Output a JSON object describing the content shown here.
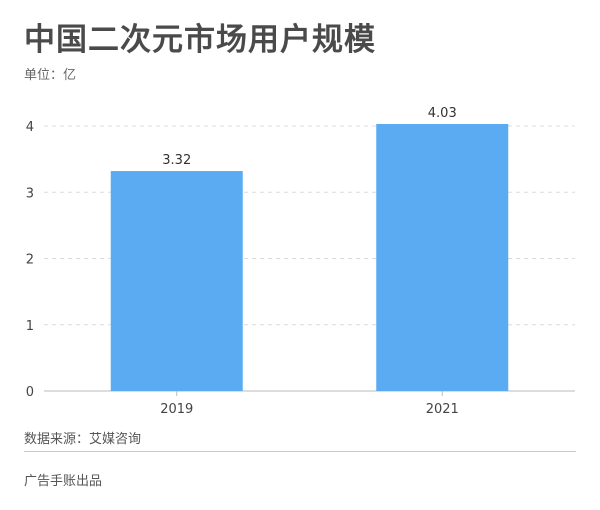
{
  "header": {
    "title": "中国二次元市场用户规模",
    "unit": "单位：亿"
  },
  "chart_data": {
    "type": "bar",
    "categories": [
      "2019",
      "2021"
    ],
    "values": [
      3.32,
      4.03
    ],
    "data_labels": [
      "3.32",
      "4.03"
    ],
    "ylim": [
      0,
      4
    ],
    "yticks": [
      0,
      1,
      2,
      3,
      4
    ],
    "grid": true,
    "bar_color": "#5aabf2"
  },
  "footer": {
    "source": "数据来源：艾媒咨询",
    "credit": "广告手账出品"
  }
}
